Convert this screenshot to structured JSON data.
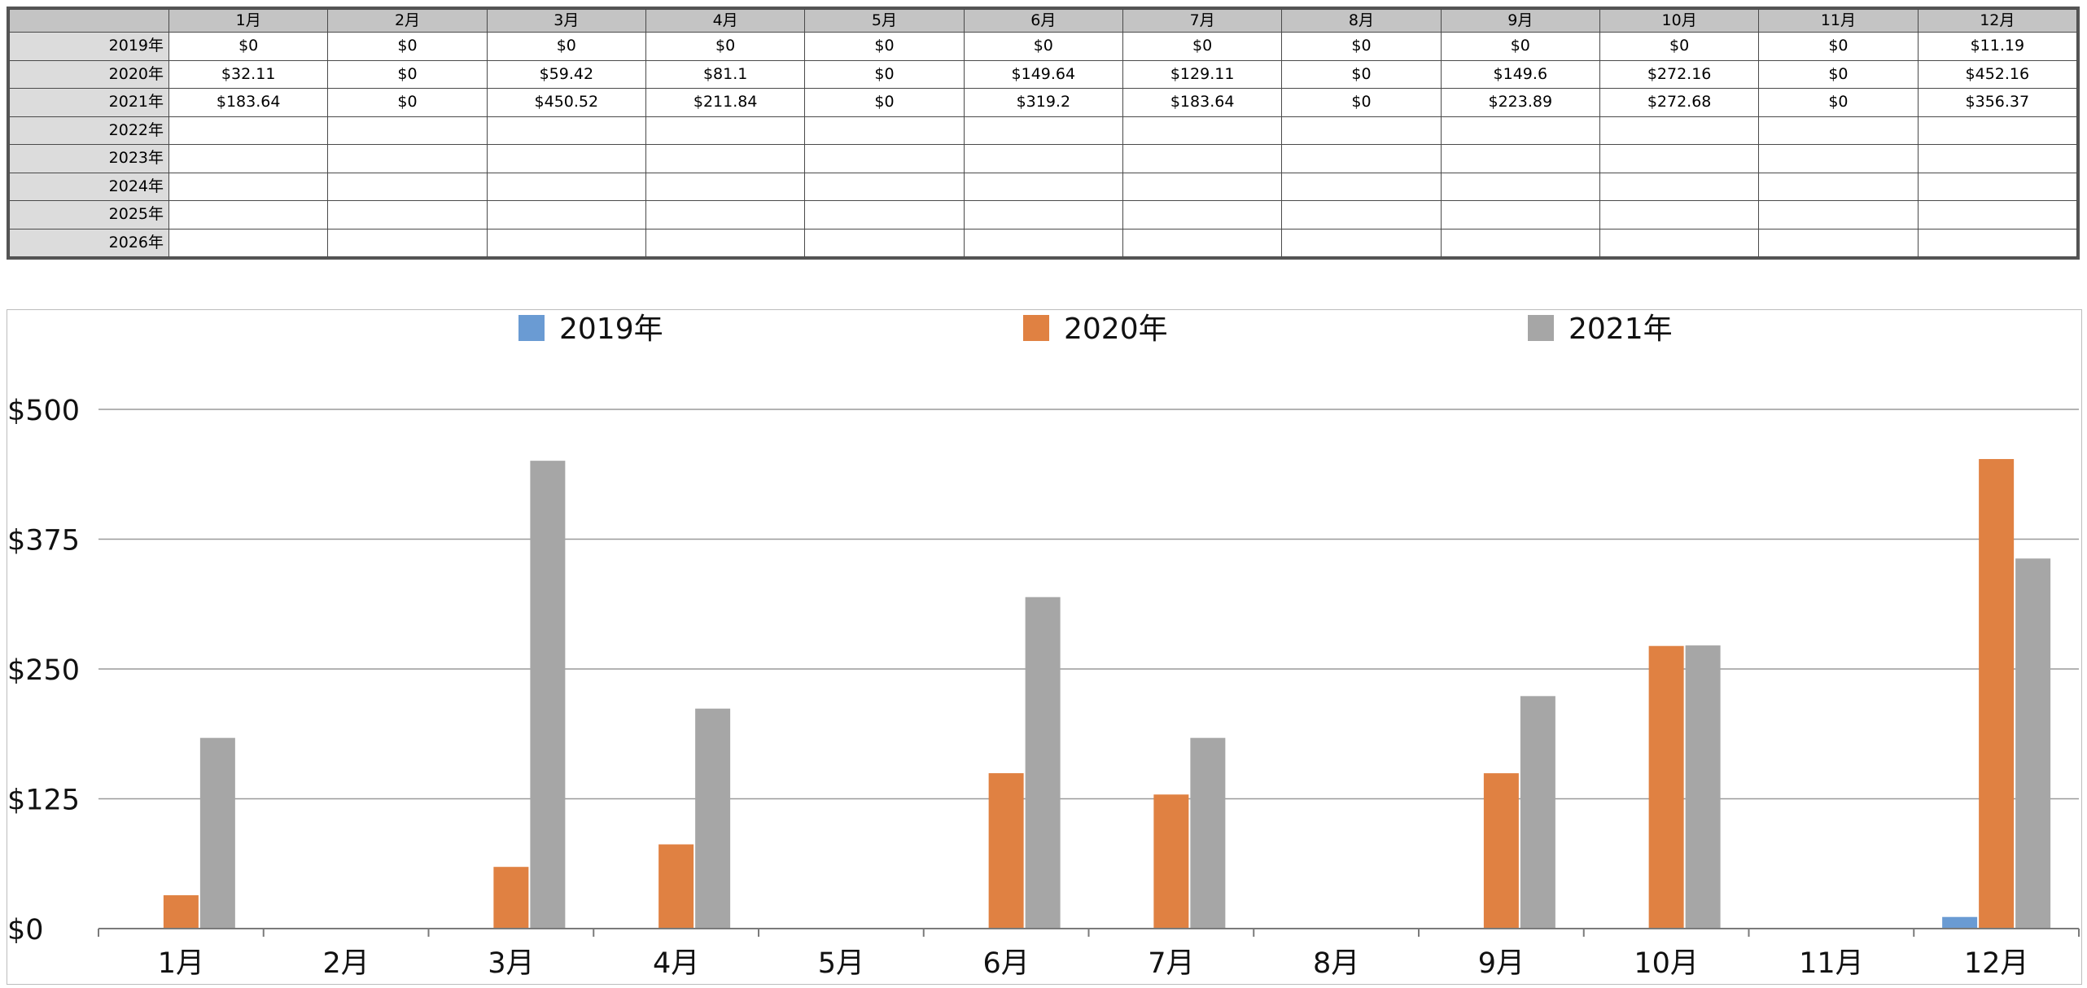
{
  "sheet": {
    "columns": [
      "1月",
      "2月",
      "3月",
      "4月",
      "5月",
      "6月",
      "7月",
      "8月",
      "9月",
      "10月",
      "11月",
      "12月"
    ],
    "rows": [
      {
        "year": "2019年",
        "cells": [
          "$0",
          "$0",
          "$0",
          "$0",
          "$0",
          "$0",
          "$0",
          "$0",
          "$0",
          "$0",
          "$0",
          "$11.19"
        ]
      },
      {
        "year": "2020年",
        "cells": [
          "$32.11",
          "$0",
          "$59.42",
          "$81.1",
          "$0",
          "$149.64",
          "$129.11",
          "$0",
          "$149.6",
          "$272.16",
          "$0",
          "$452.16"
        ]
      },
      {
        "year": "2021年",
        "cells": [
          "$183.64",
          "$0",
          "$450.52",
          "$211.84",
          "$0",
          "$319.2",
          "$183.64",
          "$0",
          "$223.89",
          "$272.68",
          "$0",
          "$356.37"
        ]
      },
      {
        "year": "2022年",
        "cells": [
          "",
          "",
          "",
          "",
          "",
          "",
          "",
          "",
          "",
          "",
          "",
          ""
        ]
      },
      {
        "year": "2023年",
        "cells": [
          "",
          "",
          "",
          "",
          "",
          "",
          "",
          "",
          "",
          "",
          "",
          ""
        ]
      },
      {
        "year": "2024年",
        "cells": [
          "",
          "",
          "",
          "",
          "",
          "",
          "",
          "",
          "",
          "",
          "",
          ""
        ]
      },
      {
        "year": "2025年",
        "cells": [
          "",
          "",
          "",
          "",
          "",
          "",
          "",
          "",
          "",
          "",
          "",
          ""
        ]
      },
      {
        "year": "2026年",
        "cells": [
          "",
          "",
          "",
          "",
          "",
          "",
          "",
          "",
          "",
          "",
          "",
          ""
        ]
      }
    ]
  },
  "chart_data": {
    "type": "bar",
    "categories": [
      "1月",
      "2月",
      "3月",
      "4月",
      "5月",
      "6月",
      "7月",
      "8月",
      "9月",
      "10月",
      "11月",
      "12月"
    ],
    "series": [
      {
        "name": "2019年",
        "color": "#6a9bd3",
        "values": [
          0,
          0,
          0,
          0,
          0,
          0,
          0,
          0,
          0,
          0,
          0,
          11.19
        ]
      },
      {
        "name": "2020年",
        "color": "#e08142",
        "values": [
          32.11,
          0,
          59.42,
          81.1,
          0,
          149.64,
          129.11,
          0,
          149.6,
          272.16,
          0,
          452.16
        ]
      },
      {
        "name": "2021年",
        "color": "#a6a6a6",
        "values": [
          183.64,
          0,
          450.52,
          211.84,
          0,
          319.2,
          183.64,
          0,
          223.89,
          272.68,
          0,
          356.37
        ]
      }
    ],
    "yticks": [
      0,
      125,
      250,
      375,
      500
    ],
    "ytick_labels": [
      "$0",
      "$125",
      "$250",
      "$375",
      "$500"
    ],
    "ylim": [
      0,
      500
    ],
    "legend": "top",
    "grid": true
  }
}
